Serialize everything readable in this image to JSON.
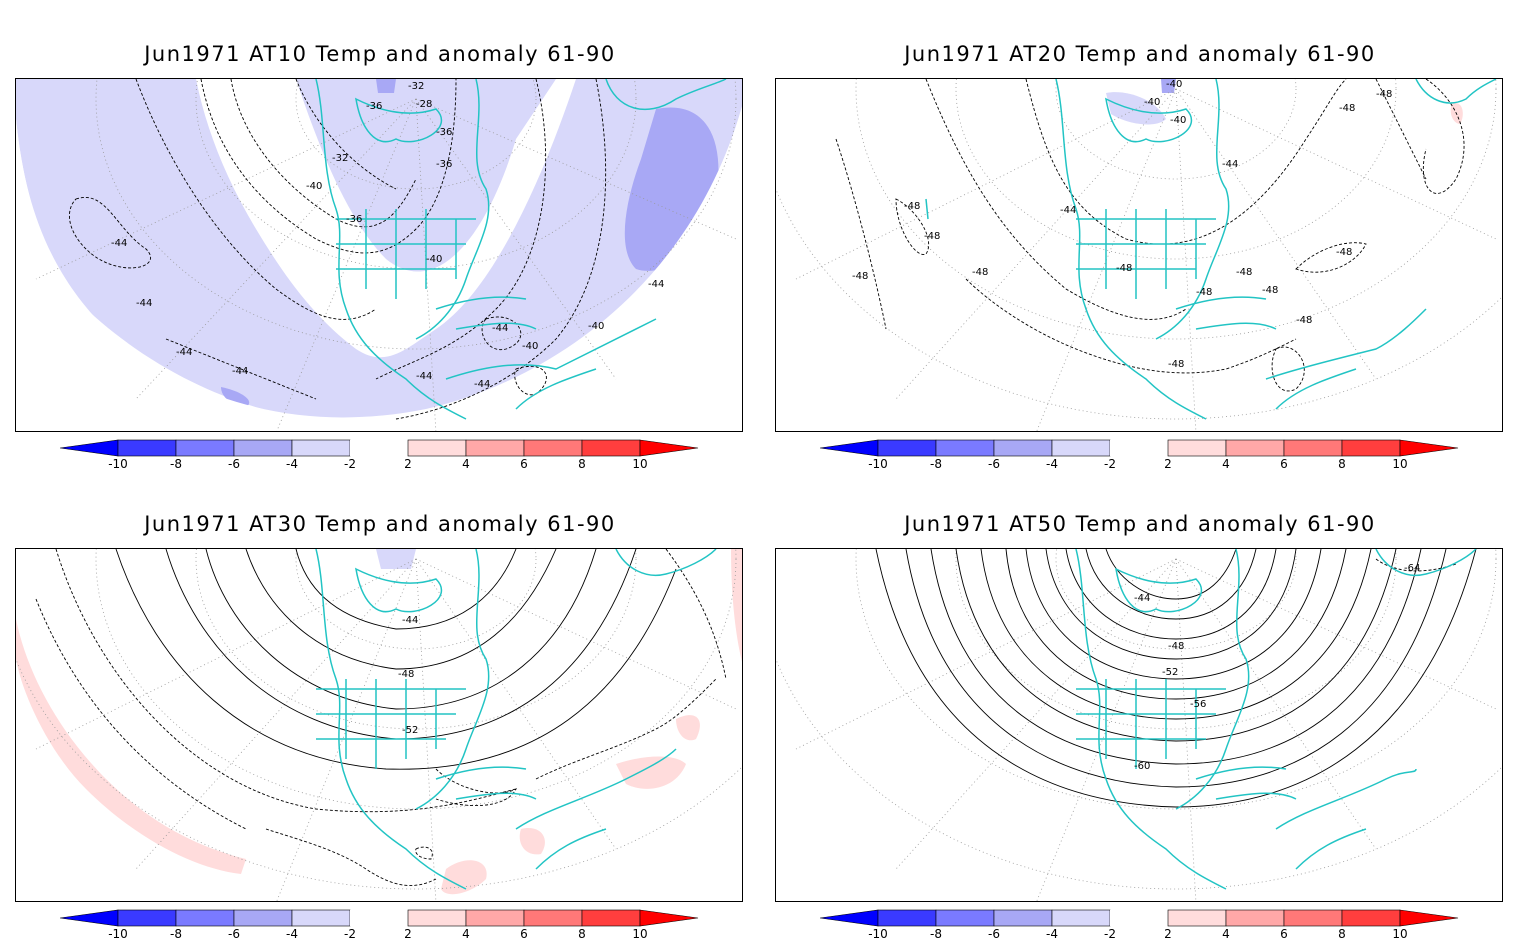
{
  "colorbar": {
    "labels": [
      "-10",
      "-8",
      "-6",
      "-4",
      "-2",
      "2",
      "4",
      "6",
      "8",
      "10"
    ],
    "colors": {
      "neg10": "#0000ff",
      "neg8": "#3a3aff",
      "neg6": "#7a7aff",
      "neg4": "#a8a8f5",
      "neg2": "#d8d8fa",
      "zero": "#ffffff",
      "pos2": "#ffdcdc",
      "pos4": "#ffa8a8",
      "pos6": "#ff7878",
      "pos8": "#ff3e3e",
      "pos10": "#ff0000"
    }
  },
  "coastline_color": "#22c4c4",
  "panels": [
    {
      "title": "Jun1971 AT10 Temp and anomaly 61-90",
      "contour_labels": [
        "-32",
        "-28",
        "-36",
        "-36",
        "-36",
        "-32",
        "-40",
        "-36",
        "-40",
        "-44",
        "-44",
        "-44",
        "-44",
        "-44",
        "-44",
        "-40",
        "-40",
        "-44",
        "-44"
      ],
      "anomaly": "mostly -2 to -4 (light blue), -4 to -6 over North Atlantic"
    },
    {
      "title": "Jun1971 AT20 Temp and anomaly 61-90",
      "contour_labels": [
        "-40",
        "-40",
        "-40",
        "-48",
        "-48",
        "-44",
        "-44",
        "-48",
        "-48",
        "-48",
        "-48",
        "-48",
        "-48",
        "-48",
        "-48",
        "-48",
        "-48",
        "-48"
      ],
      "anomaly": "near zero; small -2 over Canada, small +2 near Europe"
    },
    {
      "title": "Jun1971 AT30 Temp and anomaly 61-90",
      "contour_labels": [
        "-44",
        "-48",
        "-52"
      ],
      "anomaly": "near zero; +2 strips over Pacific and Atlantic"
    },
    {
      "title": "Jun1971 AT50 Temp and anomaly 61-90",
      "contour_labels": [
        "-44",
        "-48",
        "-52",
        "-56",
        "-60",
        "-64"
      ],
      "anomaly": "near zero"
    }
  ]
}
